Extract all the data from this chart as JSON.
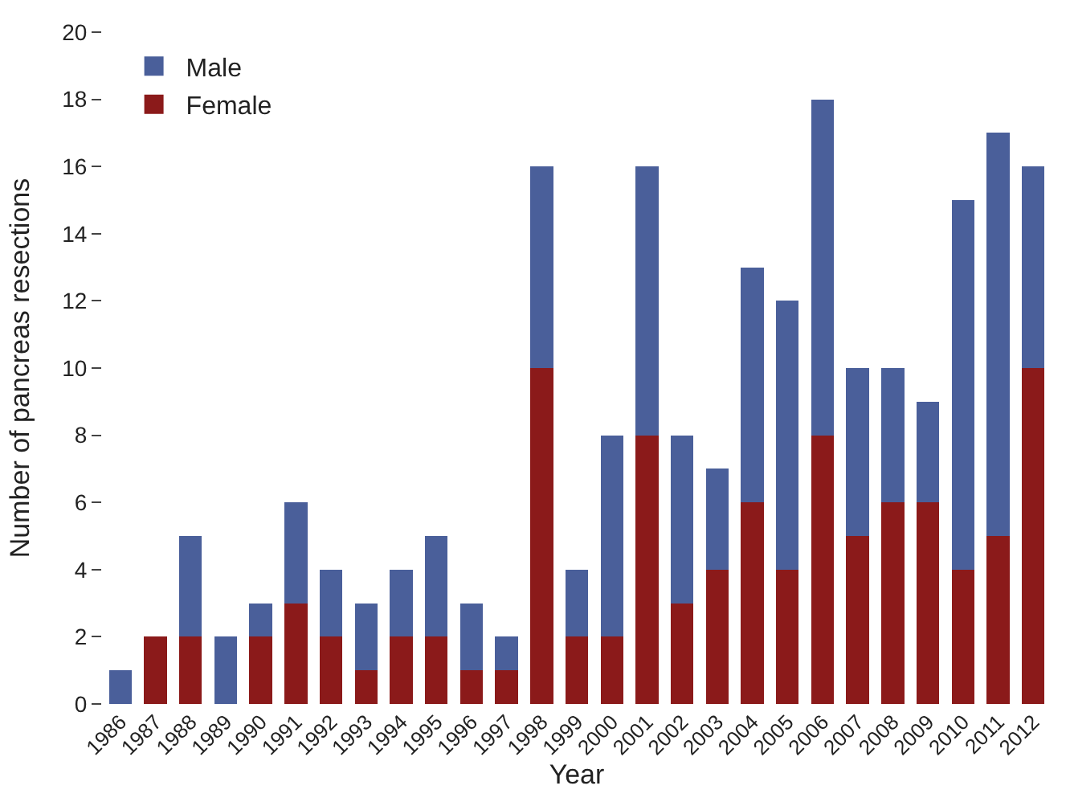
{
  "chart_data": {
    "type": "bar",
    "stacked": true,
    "xlabel": "Year",
    "ylabel": "Number of pancreas resections",
    "categories": [
      "1986",
      "1987",
      "1988",
      "1989",
      "1990",
      "1991",
      "1992",
      "1993",
      "1994",
      "1995",
      "1996",
      "1997",
      "1998",
      "1999",
      "2000",
      "2001",
      "2002",
      "2003",
      "2004",
      "2005",
      "2006",
      "2007",
      "2008",
      "2009",
      "2010",
      "2011",
      "2012"
    ],
    "series": [
      {
        "name": "Female",
        "color": "#8b1a1a",
        "values": [
          0,
          2,
          2,
          0,
          2,
          3,
          2,
          1,
          2,
          2,
          1,
          1,
          10,
          2,
          2,
          8,
          3,
          4,
          6,
          4,
          8,
          5,
          6,
          6,
          4,
          5,
          10
        ]
      },
      {
        "name": "Male",
        "color": "#4a5f9a",
        "values": [
          1,
          0,
          3,
          2,
          1,
          3,
          2,
          2,
          2,
          3,
          2,
          1,
          6,
          2,
          6,
          8,
          5,
          3,
          7,
          8,
          10,
          5,
          4,
          3,
          11,
          12,
          6
        ]
      }
    ],
    "ylim": [
      0,
      20
    ],
    "yticks": [
      0,
      2,
      4,
      6,
      8,
      10,
      12,
      14,
      16,
      18,
      20
    ],
    "legend": "top left"
  }
}
